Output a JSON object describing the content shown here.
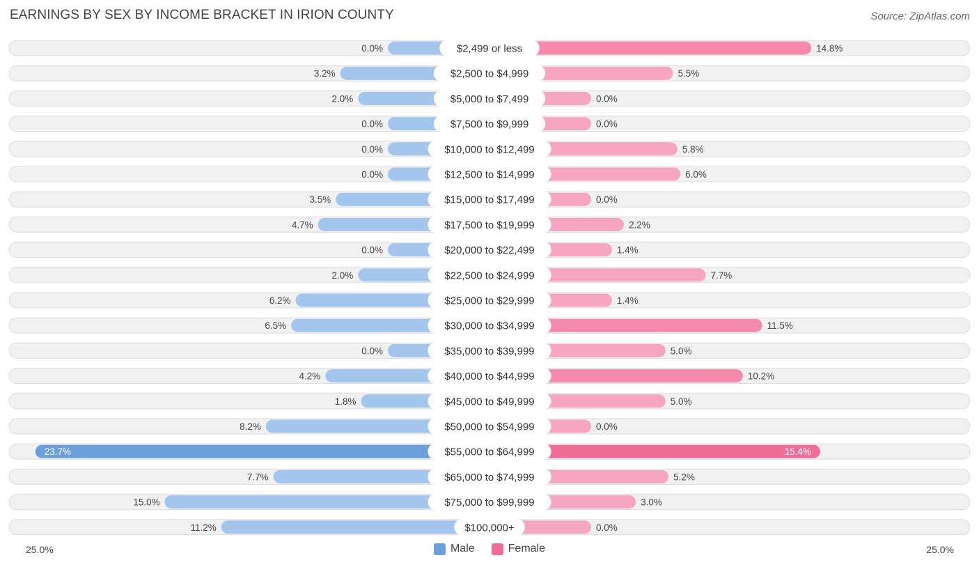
{
  "title": "EARNINGS BY SEX BY INCOME BRACKET IN IRION COUNTY",
  "source": "Source: ZipAtlas.com",
  "colors": {
    "male": "#a4c5ec",
    "male_strong": "#6b9fdc",
    "female": "#f7a6c1",
    "female_strong": "#f06d98"
  },
  "axis": {
    "left_label": "25.0%",
    "right_label": "25.0%"
  },
  "legend": {
    "male_label": "Male",
    "female_label": "Female"
  },
  "chart_data": {
    "type": "bar",
    "orientation": "horizontal-diverging",
    "title": "EARNINGS BY SEX BY INCOME BRACKET IN IRION COUNTY",
    "xlim": [
      -25,
      25
    ],
    "categories": [
      "$2,499 or less",
      "$2,500 to $4,999",
      "$5,000 to $7,499",
      "$7,500 to $9,999",
      "$10,000 to $12,499",
      "$12,500 to $14,999",
      "$15,000 to $17,499",
      "$17,500 to $19,999",
      "$20,000 to $22,499",
      "$22,500 to $24,999",
      "$25,000 to $29,999",
      "$30,000 to $34,999",
      "$35,000 to $39,999",
      "$40,000 to $44,999",
      "$45,000 to $49,999",
      "$50,000 to $54,999",
      "$55,000 to $64,999",
      "$65,000 to $74,999",
      "$75,000 to $99,999",
      "$100,000+"
    ],
    "series": [
      {
        "name": "Male",
        "values": [
          0.0,
          3.2,
          2.0,
          0.0,
          0.0,
          0.0,
          3.5,
          4.7,
          0.0,
          2.0,
          6.2,
          6.5,
          0.0,
          4.2,
          1.8,
          8.2,
          23.7,
          7.7,
          15.0,
          11.2
        ],
        "labels": [
          "0.0%",
          "3.2%",
          "2.0%",
          "0.0%",
          "0.0%",
          "0.0%",
          "3.5%",
          "4.7%",
          "0.0%",
          "2.0%",
          "6.2%",
          "6.5%",
          "0.0%",
          "4.2%",
          "1.8%",
          "8.2%",
          "23.7%",
          "7.7%",
          "15.0%",
          "11.2%"
        ]
      },
      {
        "name": "Female",
        "values": [
          14.8,
          5.5,
          0.0,
          0.0,
          5.8,
          6.0,
          0.0,
          2.2,
          1.4,
          7.7,
          1.4,
          11.5,
          5.0,
          10.2,
          5.0,
          0.0,
          15.4,
          5.2,
          3.0,
          0.0
        ],
        "labels": [
          "14.8%",
          "5.5%",
          "0.0%",
          "0.0%",
          "5.8%",
          "6.0%",
          "0.0%",
          "2.2%",
          "1.4%",
          "7.7%",
          "1.4%",
          "11.5%",
          "5.0%",
          "10.2%",
          "5.0%",
          "0.0%",
          "15.4%",
          "5.2%",
          "3.0%",
          "0.0%"
        ]
      }
    ],
    "xlabel": "",
    "ylabel": "",
    "legend": [
      "Male",
      "Female"
    ]
  }
}
